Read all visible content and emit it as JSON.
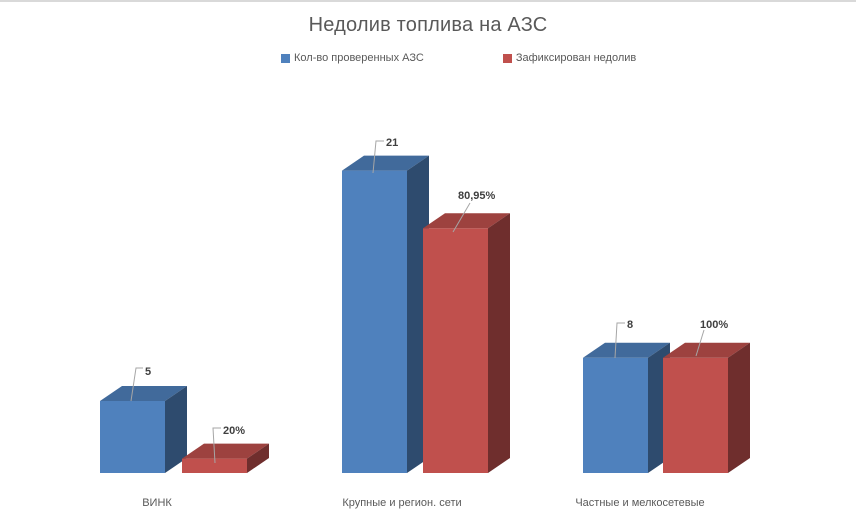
{
  "title": "Недолив топлива на АЗС",
  "chart_data": {
    "type": "bar",
    "variant": "3d-clustered-column",
    "title": "Недолив топлива на АЗС",
    "categories": [
      "ВИНК",
      "Крупные и регион. сети",
      "Частные и мелкосетевые"
    ],
    "series": [
      {
        "name": "Кол-во проверенных АЗС",
        "color": "#4F81BD",
        "values": [
          5,
          21,
          8
        ],
        "data_labels": [
          "5",
          "21",
          "8"
        ]
      },
      {
        "name": "Зафиксирован недолив",
        "color": "#C0504D",
        "values": [
          1,
          17,
          8
        ],
        "percent_of_checked": [
          20,
          80.95,
          100
        ],
        "data_labels": [
          "20%",
          "80,95%",
          "100%"
        ]
      }
    ],
    "ylim": [
      0,
      21
    ],
    "gridlines": false,
    "axes_visible": false,
    "legend_position": "top"
  },
  "colors": {
    "title_text": "#595959",
    "legend_text": "#595959",
    "category_text": "#595959",
    "data_label_text": "#3F3F3F",
    "leader_line": "#A6A6A6",
    "frame_border": "#D9D9D9"
  }
}
